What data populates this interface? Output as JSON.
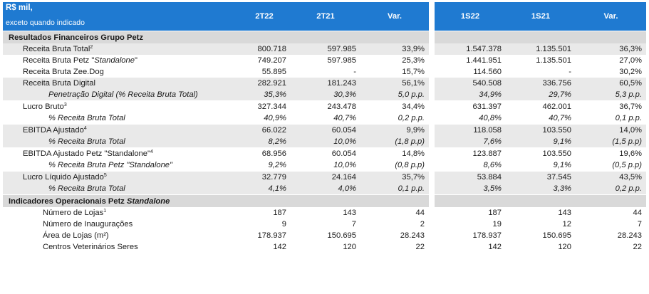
{
  "header": {
    "unit_line1": "R$ mil,",
    "unit_line2": "exceto quando indicado",
    "columns": [
      "2T22",
      "2T21",
      "Var.",
      "1S22",
      "1S21",
      "Var."
    ]
  },
  "sections": [
    {
      "title": "Resultados Financeiros Grupo Petz",
      "title_italic": "",
      "rows": [
        {
          "label": "Receita Bruta Total",
          "label_pre": "",
          "label_italic": "",
          "label_post": "",
          "sup": "2",
          "values": [
            "800.718",
            "597.985",
            "33,9%",
            "1.547.378",
            "1.135.501",
            "36,3%"
          ],
          "kind": "main",
          "shade": true
        },
        {
          "label": "Receita Bruta Petz \"",
          "label_pre": "",
          "label_italic": "Standalone",
          "label_post": "\"",
          "sup": "",
          "values": [
            "749.207",
            "597.985",
            "25,3%",
            "1.441.951",
            "1.135.501",
            "27,0%"
          ],
          "kind": "main",
          "shade": false
        },
        {
          "label": "Receita Bruta Zee.Dog",
          "label_pre": "",
          "label_italic": "",
          "label_post": "",
          "sup": "",
          "values": [
            "55.895",
            "-",
            "15,7%",
            "114.560",
            "-",
            "30,2%"
          ],
          "kind": "main",
          "shade": false
        },
        {
          "label": "Receita Bruta Digital",
          "label_pre": "",
          "label_italic": "",
          "label_post": "",
          "sup": "",
          "values": [
            "282.921",
            "181.243",
            "56,1%",
            "540.508",
            "336.756",
            "60,5%"
          ],
          "kind": "main",
          "shade": true
        },
        {
          "label": "Penetração Digital (% Receita Bruta Total)",
          "label_pre": "",
          "label_italic": "",
          "label_post": "",
          "sup": "",
          "values": [
            "35,3%",
            "30,3%",
            "5,0 p.p.",
            "34,9%",
            "29,7%",
            "5,3 p.p."
          ],
          "kind": "sub",
          "shade": true
        },
        {
          "label": "Lucro Bruto",
          "label_pre": "",
          "label_italic": "",
          "label_post": "",
          "sup": "3",
          "values": [
            "327.344",
            "243.478",
            "34,4%",
            "631.397",
            "462.001",
            "36,7%"
          ],
          "kind": "main",
          "shade": false,
          "sep": true
        },
        {
          "label": "% Receita Bruta Total",
          "label_pre": "",
          "label_italic": "",
          "label_post": "",
          "sup": "",
          "values": [
            "40,9%",
            "40,7%",
            "0,2 p.p.",
            "40,8%",
            "40,7%",
            "0,1 p.p."
          ],
          "kind": "sub",
          "shade": false
        },
        {
          "label": "EBITDA Ajustado",
          "label_pre": "",
          "label_italic": "",
          "label_post": "",
          "sup": "4",
          "values": [
            "66.022",
            "60.054",
            "9,9%",
            "118.058",
            "103.550",
            "14,0%"
          ],
          "kind": "main",
          "shade": true,
          "sep": true
        },
        {
          "label": "% Receita Bruta Total",
          "label_pre": "",
          "label_italic": "",
          "label_post": "",
          "sup": "",
          "values": [
            "8,2%",
            "10,0%",
            "(1,8 p.p)",
            "7,6%",
            "9,1%",
            "(1,5 p.p)"
          ],
          "kind": "sub",
          "shade": true
        },
        {
          "label": "EBITDA Ajustado Petz \"Standalone\"",
          "label_pre": "",
          "label_italic": "",
          "label_post": "",
          "sup": "4",
          "values": [
            "68.956",
            "60.054",
            "14,8%",
            "123.887",
            "103.550",
            "19,6%"
          ],
          "kind": "main",
          "shade": false,
          "sep": true
        },
        {
          "label": "% Receita Bruta Petz \"Standalone\"",
          "label_pre": "",
          "label_italic": "",
          "label_post": "",
          "sup": "",
          "values": [
            "9,2%",
            "10,0%",
            "(0,8 p.p)",
            "8,6%",
            "9,1%",
            "(0,5 p.p)"
          ],
          "kind": "sub",
          "shade": false
        },
        {
          "label": "Lucro Líquido Ajustado",
          "label_pre": "",
          "label_italic": "",
          "label_post": "",
          "sup": "5",
          "values": [
            "32.779",
            "24.164",
            "35,7%",
            "53.884",
            "37.545",
            "43,5%"
          ],
          "kind": "main",
          "shade": true,
          "sep": true
        },
        {
          "label": "% Receita Bruta Total",
          "label_pre": "",
          "label_italic": "",
          "label_post": "",
          "sup": "",
          "values": [
            "4,1%",
            "4,0%",
            "0,1 p.p.",
            "3,5%",
            "3,3%",
            "0,2 p.p."
          ],
          "kind": "sub",
          "shade": true
        }
      ]
    },
    {
      "title": "Indicadores Operacionais Petz ",
      "title_italic": "Standalone",
      "rows": [
        {
          "label": "Número de Lojas",
          "label_pre": "",
          "label_italic": "",
          "label_post": "",
          "sup": "1",
          "values": [
            "187",
            "143",
            "44",
            "187",
            "143",
            "44"
          ],
          "kind": "op",
          "shade": false
        },
        {
          "label": "Número de Inaugurações",
          "label_pre": "",
          "label_italic": "",
          "label_post": "",
          "sup": "",
          "values": [
            "9",
            "7",
            "2",
            "19",
            "12",
            "7"
          ],
          "kind": "op",
          "shade": false
        },
        {
          "label": "Área de Lojas (m²)",
          "label_pre": "",
          "label_italic": "",
          "label_post": "",
          "sup": "",
          "values": [
            "178.937",
            "150.695",
            "28.243",
            "178.937",
            "150.695",
            "28.243"
          ],
          "kind": "op",
          "shade": false
        },
        {
          "label": "Centros Veterinários Seres",
          "label_pre": "",
          "label_italic": "",
          "label_post": "",
          "sup": "",
          "values": [
            "142",
            "120",
            "22",
            "142",
            "120",
            "22"
          ],
          "kind": "op",
          "shade": false
        }
      ]
    }
  ]
}
